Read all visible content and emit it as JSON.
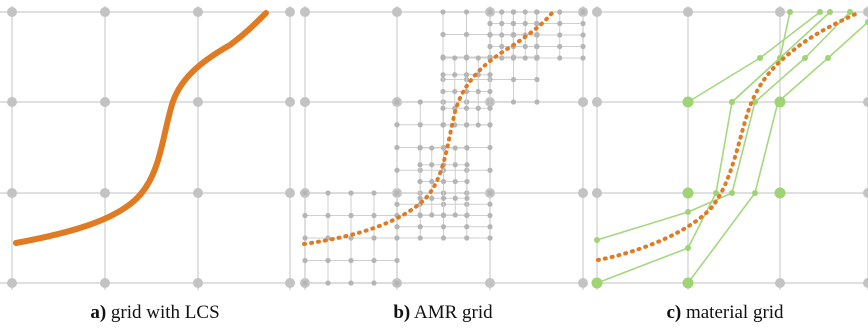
{
  "captions": [
    {
      "letter": "a)",
      "text": "grid with LCS"
    },
    {
      "letter": "b)",
      "text": "AMR grid"
    },
    {
      "letter": "c)",
      "text": "material grid"
    }
  ],
  "colors": {
    "grid_line": "#d6d6d6",
    "grid_node": "#c3c3c3",
    "amr_line": "#cfcfcf",
    "amr_node": "#b5b5b5",
    "curve": "#e07b24",
    "material": "#a6d87f",
    "material_node": "#9fd475"
  }
}
